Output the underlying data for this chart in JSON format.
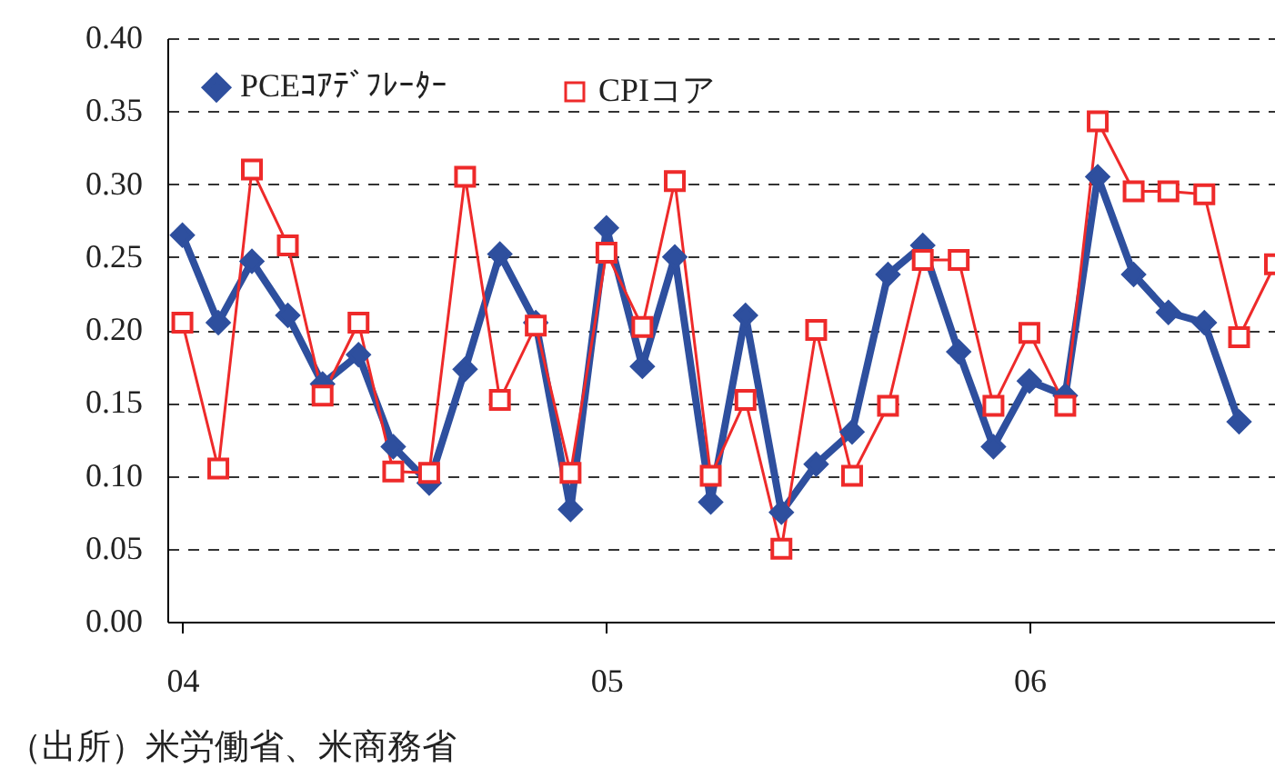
{
  "chart_data": {
    "type": "line",
    "x": [
      "2004-01",
      "2004-02",
      "2004-03",
      "2004-04",
      "2004-05",
      "2004-06",
      "2004-07",
      "2004-08",
      "2004-09",
      "2004-10",
      "2004-11",
      "2004-12",
      "2005-01",
      "2005-02",
      "2005-03",
      "2005-04",
      "2005-05",
      "2005-06",
      "2005-07",
      "2005-08",
      "2005-09",
      "2005-10",
      "2005-11",
      "2005-12",
      "2006-01",
      "2006-02",
      "2006-03",
      "2006-04",
      "2006-05",
      "2006-06",
      "2006-07",
      "2006-08"
    ],
    "series": [
      {
        "name": "PCEｺｱﾃﾞﾌﾚｰﾀｰ",
        "color": "#2e4f9e",
        "marker": "diamond",
        "values": [
          0.265,
          0.205,
          0.247,
          0.21,
          0.163,
          0.183,
          0.12,
          0.095,
          0.173,
          0.252,
          0.205,
          0.077,
          0.27,
          0.175,
          0.25,
          0.082,
          0.21,
          0.075,
          0.108,
          0.13,
          0.238,
          0.258,
          0.185,
          0.12,
          0.165,
          0.155,
          0.305,
          0.238,
          0.212,
          0.205,
          0.137,
          null
        ]
      },
      {
        "name": "CPIコア",
        "color": "#ee2a2a",
        "marker": "square",
        "values": [
          0.205,
          0.105,
          0.31,
          0.258,
          0.155,
          0.205,
          0.103,
          0.102,
          0.305,
          0.152,
          0.203,
          0.102,
          0.253,
          0.202,
          0.302,
          0.1,
          0.152,
          0.05,
          0.2,
          0.1,
          0.148,
          0.248,
          0.248,
          0.148,
          0.198,
          0.148,
          0.343,
          0.295,
          0.295,
          0.293,
          0.195,
          0.245
        ]
      }
    ],
    "xlim": [
      "2003-12-19",
      "2006-08"
    ],
    "xticks": [
      {
        "value": "2004-01",
        "label": "04"
      },
      {
        "value": "2005-01",
        "label": "05"
      },
      {
        "value": "2006-01",
        "label": "06"
      }
    ],
    "ylim": [
      0,
      0.4
    ],
    "yticks": [
      {
        "value": 0,
        "label": "0.00"
      },
      {
        "value": 0.05,
        "label": "0.05"
      },
      {
        "value": 0.1,
        "label": "0.10"
      },
      {
        "value": 0.15,
        "label": "0.15"
      },
      {
        "value": 0.2,
        "label": "0.20"
      },
      {
        "value": 0.25,
        "label": "0.25"
      },
      {
        "value": 0.3,
        "label": "0.30"
      },
      {
        "value": 0.35,
        "label": "0.35"
      },
      {
        "value": 0.4,
        "label": "0.40"
      }
    ],
    "grid": "y",
    "line_style": "solid",
    "legend": "top left",
    "annotations": [
      "（出所）米労働省、米商務省"
    ]
  }
}
